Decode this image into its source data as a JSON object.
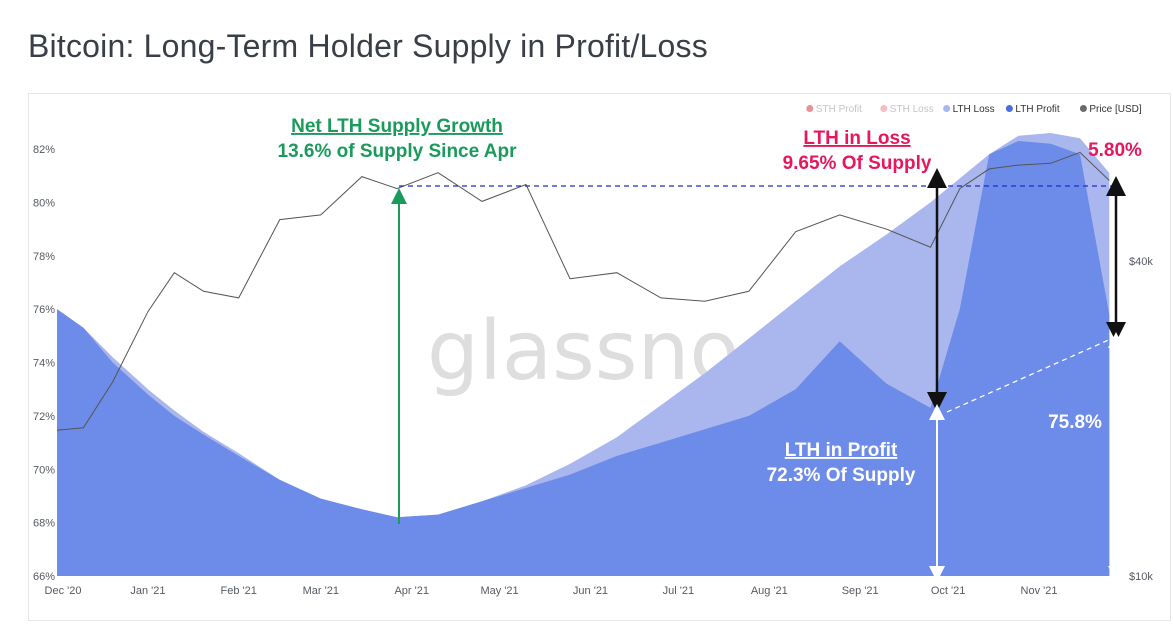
{
  "title": "Bitcoin: Long-Term Holder Supply in Profit/Loss",
  "watermark": "glassnode",
  "legend": [
    {
      "label": "STH Profit",
      "color": "#e0464e",
      "active": false
    },
    {
      "label": "STH Loss",
      "color": "#f08f93",
      "active": false
    },
    {
      "label": "LTH Loss",
      "color": "#a9b7ee",
      "active": true
    },
    {
      "label": "LTH Profit",
      "color": "#4a6ee0",
      "active": true
    },
    {
      "label": "Price [USD]",
      "color": "#6b6b6b",
      "active": true
    }
  ],
  "annotations": {
    "growth_title": "Net LTH Supply Growth",
    "growth_value": "13.6% of Supply Since Apr",
    "loss_title": "LTH in Loss",
    "loss_value": "9.65% Of Supply",
    "loss_now": "5.80%",
    "profit_title": "LTH in Profit",
    "profit_value": "72.3% Of Supply",
    "profit_now": "75.8%"
  },
  "chart_data": {
    "type": "area",
    "x_ticks": [
      "Dec '20",
      "Jan '21",
      "Feb '21",
      "Mar '21",
      "Apr '21",
      "May '21",
      "Jun '21",
      "Jul '21",
      "Aug '21",
      "Sep '21",
      "Oct '21",
      "Nov '21"
    ],
    "y_left_ticks": [
      "66%",
      "68%",
      "70%",
      "72%",
      "74%",
      "76%",
      "78%",
      "80%",
      "82%"
    ],
    "y_left_range": [
      66,
      82.8
    ],
    "y_right_ticks": [
      "$10k",
      "$40k"
    ],
    "y_right_scale": "log",
    "grid": false,
    "legend_position": "top-right",
    "x": [
      "2020-12-01",
      "2020-12-10",
      "2020-12-20",
      "2021-01-01",
      "2021-01-10",
      "2021-01-20",
      "2021-02-01",
      "2021-02-15",
      "2021-03-01",
      "2021-03-15",
      "2021-03-27",
      "2021-04-10",
      "2021-04-25",
      "2021-05-10",
      "2021-05-25",
      "2021-06-10",
      "2021-06-25",
      "2021-07-10",
      "2021-07-25",
      "2021-08-10",
      "2021-08-25",
      "2021-09-10",
      "2021-09-25",
      "2021-10-05",
      "2021-10-15",
      "2021-10-25",
      "2021-11-05",
      "2021-11-15",
      "2021-11-25"
    ],
    "series": [
      {
        "name": "LTH Loss",
        "unit": "% of supply",
        "values": [
          76.0,
          75.3,
          74.2,
          73.0,
          72.2,
          71.4,
          70.6,
          69.6,
          68.9,
          68.5,
          68.2,
          68.3,
          68.8,
          69.4,
          70.2,
          71.2,
          72.4,
          73.6,
          74.9,
          76.3,
          77.6,
          78.8,
          80.0,
          80.9,
          81.8,
          82.5,
          82.6,
          82.4,
          81.1
        ]
      },
      {
        "name": "LTH Profit",
        "unit": "% of supply",
        "values": [
          76.0,
          75.3,
          74.0,
          72.8,
          72.0,
          71.3,
          70.5,
          69.6,
          68.9,
          68.5,
          68.2,
          68.3,
          68.8,
          69.3,
          69.8,
          70.5,
          71.0,
          71.5,
          72.0,
          73.0,
          74.8,
          73.2,
          72.3,
          76.0,
          81.8,
          82.3,
          82.2,
          81.8,
          75.8
        ]
      },
      {
        "name": "Price [USD]",
        "unit": "USD",
        "values": [
          19000,
          19200,
          23500,
          32000,
          38000,
          35000,
          34000,
          48000,
          49000,
          58000,
          55000,
          59000,
          52000,
          56000,
          37000,
          38000,
          34000,
          33500,
          35000,
          45500,
          49000,
          46000,
          42500,
          55000,
          60000,
          61000,
          61500,
          64500,
          57000
        ]
      }
    ]
  }
}
